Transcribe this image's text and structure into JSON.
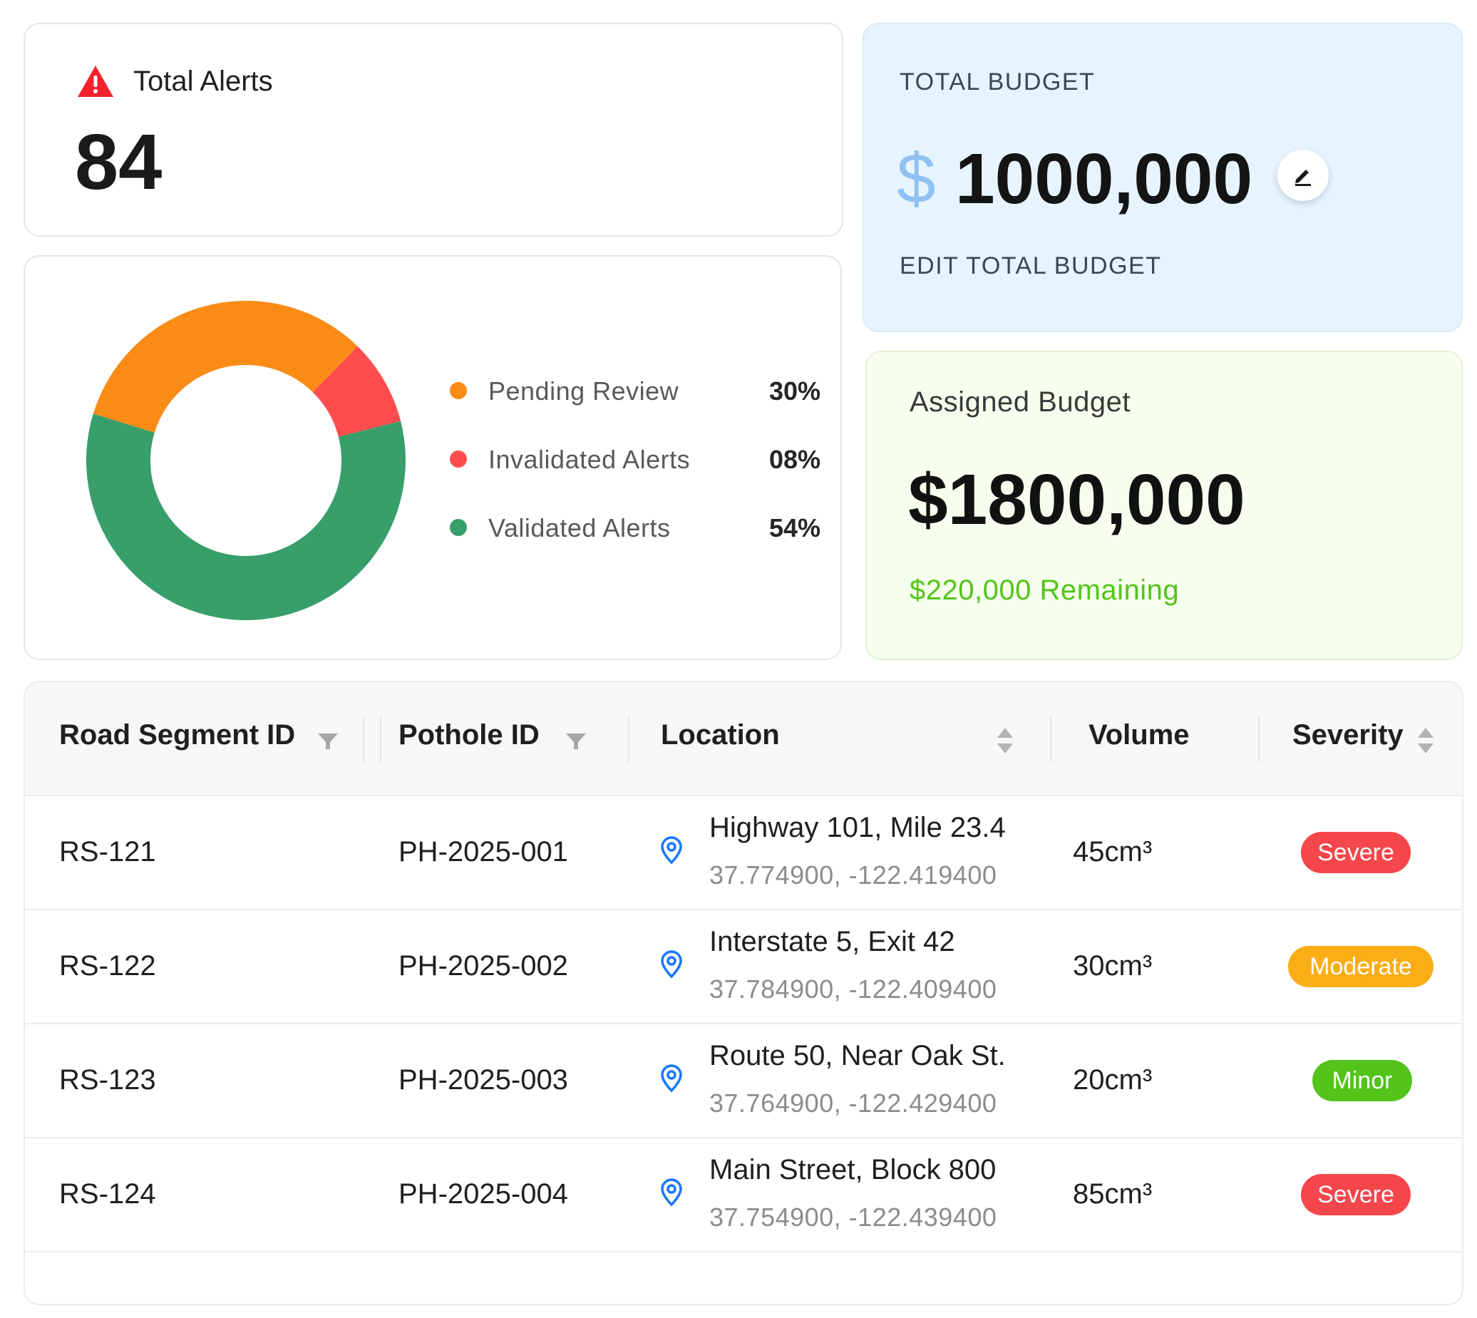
{
  "alerts": {
    "title": "Total Alerts",
    "count": "84",
    "icon": "warning-icon",
    "icon_color": "#f5222d"
  },
  "chart_data": {
    "type": "pie",
    "categories": [
      "Pending Review",
      "Invalidated Alerts",
      "Validated Alerts"
    ],
    "values": [
      30,
      8,
      54
    ],
    "percent_labels": [
      "30%",
      "08%",
      "54%"
    ],
    "colors": [
      "#fa8c16",
      "#ff4d4f",
      "#389e6a"
    ],
    "donut": true,
    "legend_position": "right"
  },
  "total_budget": {
    "caption": "TOTAL BUDGET",
    "currency": "$",
    "amount": "1000,000",
    "edit_label": "EDIT TOTAL BUDGET",
    "edit_icon": "pencil-icon"
  },
  "assigned_budget": {
    "title": "Assigned Budget",
    "amount": "$1800,000",
    "remaining": "$220,000 Remaining",
    "remaining_color": "#52c41a"
  },
  "table": {
    "columns": [
      "Road Segment ID",
      "Pothole ID",
      "Location",
      "Volume",
      "Severity"
    ],
    "rows": [
      {
        "segment": "RS-121",
        "pothole": "PH-2025-001",
        "location": "Highway 101, Mile 23.4",
        "coords": "37.774900, -122.419400",
        "volume": "45cm³",
        "severity": "Severe"
      },
      {
        "segment": "RS-122",
        "pothole": "PH-2025-002",
        "location": "Interstate 5, Exit 42",
        "coords": "37.784900, -122.409400",
        "volume": "30cm³",
        "severity": "Moderate"
      },
      {
        "segment": "RS-123",
        "pothole": "PH-2025-003",
        "location": "Route 50, Near Oak St.",
        "coords": "37.764900, -122.429400",
        "volume": "20cm³",
        "severity": "Minor"
      },
      {
        "segment": "RS-124",
        "pothole": "PH-2025-004",
        "location": "Main Street, Block 800",
        "coords": "37.754900, -122.439400",
        "volume": "85cm³",
        "severity": "Severe"
      }
    ],
    "severity_colors": {
      "Severe": "#f5464b",
      "Moderate": "#faad14",
      "Minor": "#52c41a"
    }
  }
}
